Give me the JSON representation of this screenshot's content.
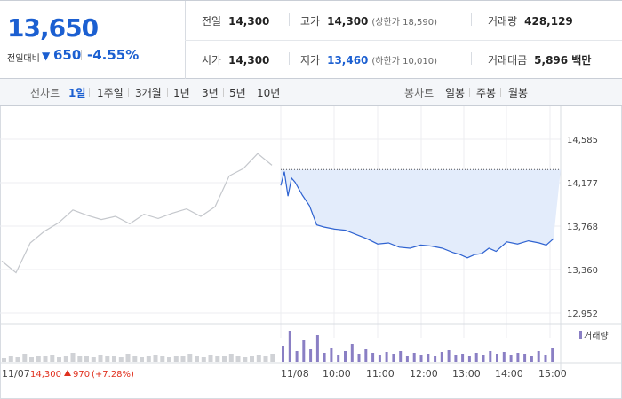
{
  "quote": {
    "price": "13,650",
    "change_label": "전일대비",
    "change_value": "650",
    "change_pct": "-4.55%",
    "color_down": "#1b5fd1",
    "color_up": "#e0301e"
  },
  "stats": {
    "prev_close": {
      "label": "전일",
      "value": "14,300"
    },
    "open": {
      "label": "시가",
      "value": "14,300"
    },
    "high": {
      "label": "고가",
      "value": "14,300",
      "sub": "(상한가 18,590)"
    },
    "low": {
      "label": "저가",
      "value": "13,460",
      "sub": "(하한가 10,010)"
    },
    "volume": {
      "label": "거래량",
      "value": "428,129"
    },
    "amount": {
      "label": "거래대금",
      "value": "5,896 백만"
    }
  },
  "tabs": {
    "line_label": "선차트",
    "line_items": [
      "1일",
      "1주일",
      "3개월",
      "1년",
      "3년",
      "5년",
      "10년"
    ],
    "active": "1일",
    "candle_label": "봉차트",
    "candle_items": [
      "일봉",
      "주봉",
      "월봉"
    ]
  },
  "chart_data": {
    "type": "line",
    "y_ticks": [
      "14,585",
      "14,177",
      "13,768",
      "13,360",
      "12,952"
    ],
    "ylim": [
      12952,
      14585
    ],
    "prev_close": 14300,
    "x_ticks": [
      "11/07",
      "11/08",
      "10:00",
      "11:00",
      "12:00",
      "13:00",
      "14:00",
      "15:00"
    ],
    "prev_day_note": {
      "date": "11/07",
      "price": "14,300",
      "change": "970",
      "pct": "(+7.28%)"
    },
    "volume_legend": "거래량",
    "series": [
      {
        "name": "11/07",
        "x": [
          "09:00",
          "09:20",
          "09:40",
          "10:00",
          "10:20",
          "10:40",
          "11:00",
          "11:20",
          "11:40",
          "12:00",
          "12:20",
          "12:40",
          "13:00",
          "13:20",
          "13:40",
          "14:00",
          "14:20",
          "14:40",
          "15:00",
          "15:20"
        ],
        "values": [
          13440,
          13330,
          13610,
          13720,
          13800,
          13920,
          13870,
          13830,
          13860,
          13790,
          13880,
          13840,
          13890,
          13930,
          13860,
          13950,
          14240,
          14310,
          14450,
          14340
        ]
      },
      {
        "name": "11/08",
        "x": [
          "09:00",
          "09:05",
          "09:10",
          "09:15",
          "09:20",
          "09:30",
          "09:40",
          "09:50",
          "10:00",
          "10:15",
          "10:30",
          "10:45",
          "11:00",
          "11:15",
          "11:30",
          "11:45",
          "12:00",
          "12:15",
          "12:30",
          "12:45",
          "13:00",
          "13:10",
          "13:20",
          "13:30",
          "13:40",
          "13:50",
          "14:00",
          "14:15",
          "14:30",
          "14:45",
          "15:00",
          "15:10",
          "15:20"
        ],
        "values": [
          14150,
          14280,
          14050,
          14220,
          14180,
          14060,
          13960,
          13780,
          13760,
          13740,
          13730,
          13690,
          13650,
          13600,
          13610,
          13570,
          13560,
          13590,
          13580,
          13560,
          13520,
          13500,
          13470,
          13500,
          13510,
          13560,
          13530,
          13620,
          13600,
          13630,
          13610,
          13590,
          13650
        ]
      }
    ],
    "volume": {
      "prev_day": [
        4,
        6,
        5,
        9,
        5,
        7,
        6,
        8,
        5,
        6,
        10,
        7,
        6,
        5,
        8,
        6,
        7,
        5,
        9,
        6,
        5,
        7,
        8,
        6,
        5,
        6,
        7,
        9,
        6,
        5,
        8,
        7,
        6,
        9,
        7,
        5,
        6,
        8,
        7,
        9
      ],
      "today": [
        18,
        35,
        12,
        24,
        14,
        30,
        10,
        16,
        8,
        12,
        20,
        9,
        14,
        10,
        8,
        11,
        9,
        12,
        7,
        10,
        8,
        9,
        7,
        11,
        13,
        8,
        9,
        7,
        10,
        8,
        12,
        9,
        11,
        8,
        10,
        9,
        7,
        12,
        8,
        16
      ]
    }
  }
}
